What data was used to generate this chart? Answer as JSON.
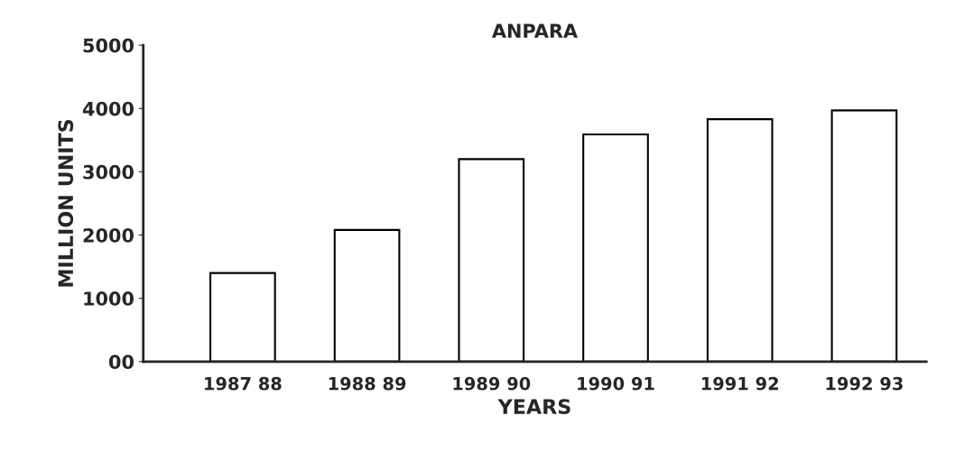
{
  "chart_data": {
    "type": "bar",
    "title": "ANPARA",
    "xlabel": "YEARS",
    "ylabel": "MILLION UNITS",
    "categories": [
      "1987 88",
      "1988 89",
      "1989 90",
      "1990 91",
      "1991 92",
      "1992 93"
    ],
    "values": [
      1400,
      2080,
      3200,
      3590,
      3830,
      3970
    ],
    "color": "#ffffff",
    "ylim": [
      0,
      5000
    ],
    "yticks": [
      {
        "value": 0,
        "label": "00"
      },
      1000,
      2000,
      3000,
      4000,
      5000
    ],
    "grid": false
  }
}
